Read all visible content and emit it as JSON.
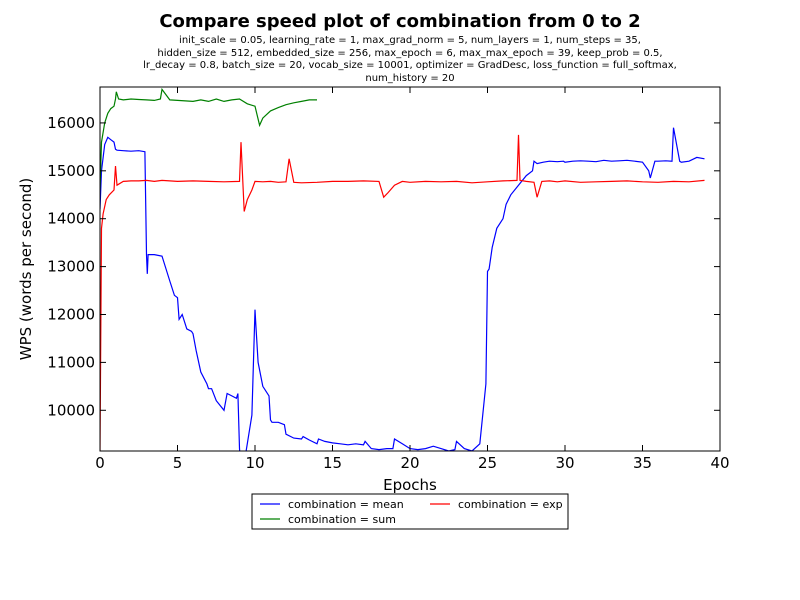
{
  "chart_data": {
    "type": "line",
    "title": "Compare speed plot of combination from 0 to 2",
    "subtitle_lines": [
      "init_scale = 0.05, learning_rate = 1, max_grad_norm = 5, num_layers = 1, num_steps = 35,",
      "hidden_size = 512, embedded_size = 256, max_epoch = 6, max_max_epoch = 39, keep_prob = 0.5,",
      "lr_decay = 0.8, batch_size = 20, vocab_size = 10001, optimizer = GradDesc, loss_function = full_softmax,",
      "num_history = 20"
    ],
    "xlabel": "Epochs",
    "ylabel": "WPS (words per second)",
    "xlim": [
      0,
      40
    ],
    "ylim": [
      9150,
      16750
    ],
    "xticks": [
      0,
      5,
      10,
      15,
      20,
      25,
      30,
      35,
      40
    ],
    "yticks": [
      10000,
      11000,
      12000,
      13000,
      14000,
      15000,
      16000
    ],
    "grid": false,
    "legend_placement": "below-center",
    "series": [
      {
        "name": "combination = mean",
        "color": "#0000ff",
        "x": [
          0,
          0.1,
          0.3,
          0.5,
          0.7,
          0.9,
          1.0,
          1.1,
          1.5,
          2.0,
          2.5,
          2.9,
          3.0,
          3.05,
          3.1,
          3.5,
          4.0,
          4.5,
          4.8,
          5.0,
          5.1,
          5.3,
          5.6,
          5.9,
          6.0,
          6.2,
          6.5,
          6.9,
          7.0,
          7.2,
          7.5,
          8.0,
          8.2,
          8.5,
          8.8,
          8.9,
          9.0,
          9.1,
          9.3,
          9.8,
          10.0,
          10.05,
          10.2,
          10.5,
          10.9,
          11.0,
          11.1,
          11.5,
          11.9,
          12.0,
          12.5,
          13.0,
          13.1,
          13.5,
          14.0,
          14.1,
          14.5,
          15.0,
          15.5,
          16.0,
          16.5,
          17.0,
          17.1,
          17.5,
          18.0,
          18.5,
          18.9,
          19.0,
          19.5,
          20.0,
          20.5,
          21.0,
          21.5,
          22.0,
          22.5,
          22.9,
          23.0,
          23.5,
          24.0,
          24.5,
          24.9,
          25.0,
          25.1,
          25.3,
          25.6,
          26.0,
          26.2,
          26.5,
          27.0,
          27.5,
          27.9,
          28.0,
          28.2,
          28.6,
          29.0,
          29.5,
          29.9,
          30.0,
          30.5,
          31.0,
          31.5,
          32.0,
          32.5,
          33.0,
          33.5,
          34.0,
          34.5,
          35.0,
          35.4,
          35.5,
          35.8,
          36.0,
          36.5,
          36.9,
          37.0,
          37.4,
          37.5,
          38.0,
          38.5,
          39.0
        ],
        "values": [
          14200,
          15000,
          15550,
          15700,
          15650,
          15600,
          15450,
          15430,
          15420,
          15410,
          15420,
          15400,
          13250,
          12850,
          13250,
          13250,
          13220,
          12700,
          12400,
          12350,
          11900,
          12000,
          11700,
          11650,
          11600,
          11250,
          10800,
          10550,
          10450,
          10450,
          10200,
          10000,
          10350,
          10300,
          10250,
          10350,
          9200,
          8800,
          8900,
          9900,
          12100,
          11800,
          11000,
          10500,
          10300,
          9800,
          9750,
          9750,
          9700,
          9500,
          9420,
          9400,
          9450,
          9380,
          9300,
          9400,
          9350,
          9320,
          9300,
          9280,
          9300,
          9280,
          9350,
          9200,
          9180,
          9200,
          9200,
          9400,
          9300,
          9200,
          9180,
          9200,
          9250,
          9200,
          9150,
          9180,
          9350,
          9200,
          9150,
          9300,
          10550,
          12900,
          12950,
          13400,
          13800,
          14000,
          14300,
          14500,
          14700,
          14900,
          15000,
          15200,
          15150,
          15180,
          15200,
          15190,
          15200,
          15180,
          15200,
          15210,
          15200,
          15190,
          15220,
          15200,
          15210,
          15220,
          15200,
          15180,
          15000,
          14850,
          15200,
          15200,
          15210,
          15200,
          15900,
          15200,
          15180,
          15200,
          15280,
          15250
        ]
      },
      {
        "name": "combination = sum",
        "color": "#008000",
        "x": [
          0,
          0.1,
          0.3,
          0.5,
          0.7,
          0.9,
          1.0,
          1.05,
          1.2,
          1.5,
          2.0,
          2.5,
          3.0,
          3.5,
          3.9,
          4.0,
          4.5,
          5.0,
          5.5,
          6.0,
          6.5,
          7.0,
          7.5,
          8.0,
          8.5,
          9.0,
          9.5,
          10.0,
          10.3,
          10.5,
          11.0,
          11.5,
          12.0,
          12.5,
          13.0,
          13.5,
          14.0
        ],
        "values": [
          14600,
          15600,
          16000,
          16200,
          16300,
          16350,
          16500,
          16650,
          16500,
          16480,
          16500,
          16490,
          16480,
          16470,
          16500,
          16700,
          16480,
          16470,
          16460,
          16450,
          16480,
          16450,
          16500,
          16450,
          16480,
          16500,
          16400,
          16350,
          15950,
          16100,
          16250,
          16320,
          16380,
          16420,
          16450,
          16480,
          16480
        ]
      },
      {
        "name": "combination = exp",
        "color": "#ff0000",
        "x": [
          0,
          0.1,
          0.2,
          0.4,
          0.6,
          0.9,
          1.0,
          1.1,
          1.5,
          2.0,
          2.5,
          3.0,
          3.5,
          4.0,
          5.0,
          6.0,
          7.0,
          8.0,
          9.0,
          9.1,
          9.3,
          9.5,
          9.8,
          10.0,
          10.5,
          11.0,
          11.5,
          12.0,
          12.2,
          12.5,
          13.0,
          14.0,
          15.0,
          16.0,
          17.0,
          18.0,
          18.3,
          18.6,
          19.0,
          19.5,
          20.0,
          21.0,
          22.0,
          23.0,
          24.0,
          25.0,
          26.0,
          26.9,
          27.0,
          27.1,
          27.5,
          28.0,
          28.2,
          28.5,
          29.0,
          29.5,
          30.0,
          31.0,
          32.0,
          33.0,
          34.0,
          35.0,
          36.0,
          37.0,
          38.0,
          39.0
        ],
        "values": [
          9150,
          13800,
          14100,
          14400,
          14500,
          14600,
          15100,
          14700,
          14780,
          14790,
          14790,
          14800,
          14780,
          14800,
          14780,
          14790,
          14780,
          14770,
          14780,
          15600,
          14150,
          14400,
          14600,
          14780,
          14770,
          14780,
          14760,
          14770,
          15250,
          14760,
          14750,
          14760,
          14780,
          14780,
          14790,
          14780,
          14450,
          14550,
          14700,
          14780,
          14760,
          14780,
          14770,
          14780,
          14750,
          14770,
          14790,
          14800,
          15750,
          14800,
          14780,
          14760,
          14450,
          14780,
          14790,
          14770,
          14790,
          14760,
          14770,
          14780,
          14790,
          14770,
          14760,
          14780,
          14770,
          14800
        ]
      }
    ]
  }
}
